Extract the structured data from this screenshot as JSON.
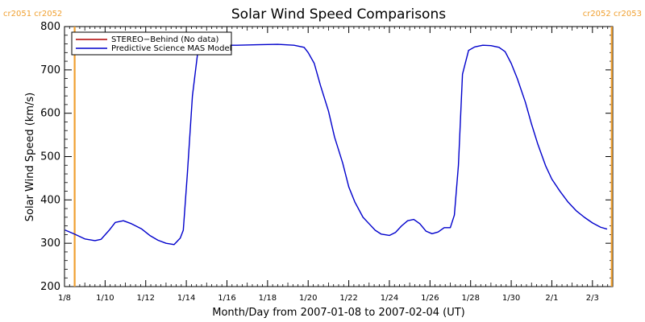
{
  "chart_data": {
    "type": "line",
    "title": "Solar Wind Speed Comparisons",
    "xlabel": "Month/Day from 2007-01-08 to 2007-02-04 (UT)",
    "ylabel": "Solar Wind Speed (km/s)",
    "x_range": [
      "2007-01-08",
      "2007-02-04"
    ],
    "xlim_days": [
      0,
      27
    ],
    "ylim": [
      200,
      800
    ],
    "x_ticks": [
      {
        "label": "1/8",
        "day": 0
      },
      {
        "label": "1/10",
        "day": 2
      },
      {
        "label": "1/12",
        "day": 4
      },
      {
        "label": "1/14",
        "day": 6
      },
      {
        "label": "1/16",
        "day": 8
      },
      {
        "label": "1/18",
        "day": 10
      },
      {
        "label": "1/20",
        "day": 12
      },
      {
        "label": "1/22",
        "day": 14
      },
      {
        "label": "1/24",
        "day": 16
      },
      {
        "label": "1/26",
        "day": 18
      },
      {
        "label": "1/28",
        "day": 20
      },
      {
        "label": "1/30",
        "day": 22
      },
      {
        "label": "2/1",
        "day": 24
      },
      {
        "label": "2/3",
        "day": 26
      }
    ],
    "y_ticks": [
      200,
      300,
      400,
      500,
      600,
      700,
      800
    ],
    "legend": {
      "position": "top-left",
      "entries": [
        {
          "label": "STEREO−Behind (No data)",
          "color": "#b00000"
        },
        {
          "label": "Predictive Science MAS Model",
          "color": "#0000cc"
        }
      ]
    },
    "carrington_markers": [
      {
        "label": "cr2051 cr2052",
        "day": 0.5,
        "side": "left"
      },
      {
        "label": "cr2052 cr2053",
        "day": 26.95,
        "side": "right"
      }
    ],
    "series": [
      {
        "name": "Predictive Science MAS Model",
        "color": "#0000cc",
        "points": [
          [
            0.05,
            330
          ],
          [
            0.5,
            321
          ],
          [
            1.0,
            310
          ],
          [
            1.5,
            306
          ],
          [
            1.8,
            309
          ],
          [
            2.2,
            330
          ],
          [
            2.5,
            348
          ],
          [
            2.9,
            352
          ],
          [
            3.3,
            345
          ],
          [
            3.8,
            333
          ],
          [
            4.2,
            318
          ],
          [
            4.6,
            307
          ],
          [
            5.0,
            300
          ],
          [
            5.4,
            297
          ],
          [
            5.7,
            312
          ],
          [
            5.85,
            330
          ],
          [
            6.05,
            460
          ],
          [
            6.3,
            640
          ],
          [
            6.6,
            755
          ],
          [
            7.5,
            757
          ],
          [
            8.5,
            757
          ],
          [
            9.5,
            758
          ],
          [
            10.5,
            759
          ],
          [
            11.3,
            757
          ],
          [
            11.8,
            752
          ],
          [
            12.0,
            740
          ],
          [
            12.3,
            715
          ],
          [
            12.6,
            665
          ],
          [
            13.0,
            605
          ],
          [
            13.3,
            545
          ],
          [
            13.7,
            485
          ],
          [
            14.0,
            430
          ],
          [
            14.3,
            395
          ],
          [
            14.7,
            360
          ],
          [
            15.0,
            345
          ],
          [
            15.3,
            330
          ],
          [
            15.6,
            321
          ],
          [
            16.0,
            318
          ],
          [
            16.3,
            325
          ],
          [
            16.6,
            340
          ],
          [
            16.9,
            352
          ],
          [
            17.2,
            355
          ],
          [
            17.5,
            345
          ],
          [
            17.8,
            328
          ],
          [
            18.1,
            322
          ],
          [
            18.4,
            326
          ],
          [
            18.7,
            336
          ],
          [
            19.0,
            336
          ],
          [
            19.2,
            365
          ],
          [
            19.4,
            480
          ],
          [
            19.6,
            690
          ],
          [
            19.9,
            745
          ],
          [
            20.2,
            753
          ],
          [
            20.6,
            757
          ],
          [
            21.0,
            756
          ],
          [
            21.4,
            752
          ],
          [
            21.7,
            742
          ],
          [
            22.0,
            715
          ],
          [
            22.3,
            680
          ],
          [
            22.7,
            625
          ],
          [
            23.0,
            575
          ],
          [
            23.3,
            530
          ],
          [
            23.7,
            478
          ],
          [
            24.0,
            448
          ],
          [
            24.4,
            420
          ],
          [
            24.8,
            395
          ],
          [
            25.2,
            375
          ],
          [
            25.6,
            360
          ],
          [
            26.0,
            347
          ],
          [
            26.4,
            337
          ],
          [
            26.7,
            333
          ]
        ]
      }
    ]
  }
}
